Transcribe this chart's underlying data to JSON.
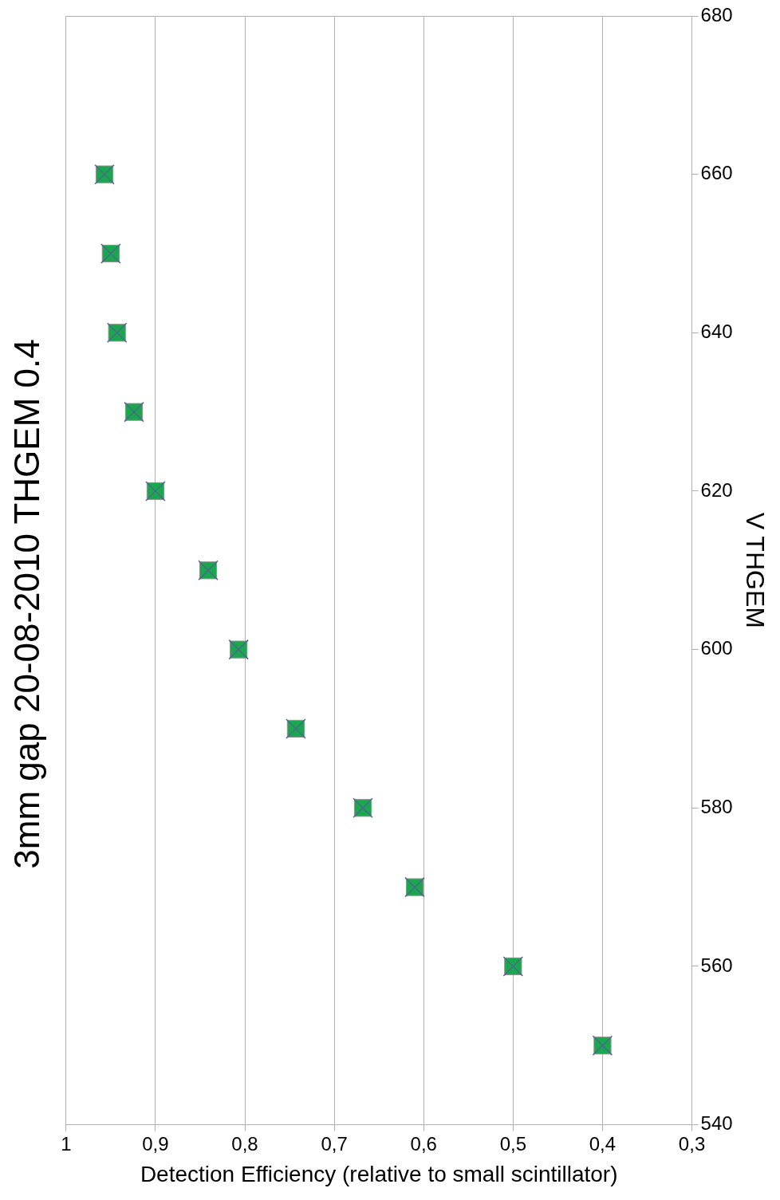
{
  "chart_data": {
    "type": "scatter",
    "title": "3mm gap 20-08-2010 THGEM 0.4",
    "xlabel": "Detection Efficiency (relative to small scintillator)",
    "ylabel": "V THGEM",
    "x": [
      0.4,
      0.5,
      0.61,
      0.668,
      0.743,
      0.807,
      0.841,
      0.9,
      0.924,
      0.943,
      0.95,
      0.957
    ],
    "series": [
      {
        "color": "#1aa84f",
        "values": [
          550,
          560,
          570,
          580,
          590,
          600,
          610,
          620,
          630,
          640,
          650,
          660
        ]
      }
    ],
    "xlim": [
      1,
      0.3
    ],
    "xticks": [
      1,
      {
        "value": 0.9,
        "label": "0,9"
      },
      {
        "value": 0.8,
        "label": "0,8"
      },
      {
        "value": 0.7,
        "label": "0,7"
      },
      {
        "value": 0.6,
        "label": "0,6"
      },
      {
        "value": 0.5,
        "label": "0,5"
      },
      {
        "value": 0.4,
        "label": "0,4"
      },
      {
        "value": 0.3,
        "label": "0,3"
      }
    ],
    "ylim": [
      540,
      680
    ],
    "yticks": [
      540,
      560,
      580,
      600,
      620,
      640,
      660,
      680
    ],
    "grid": "x",
    "legend": false,
    "marker": "square"
  }
}
